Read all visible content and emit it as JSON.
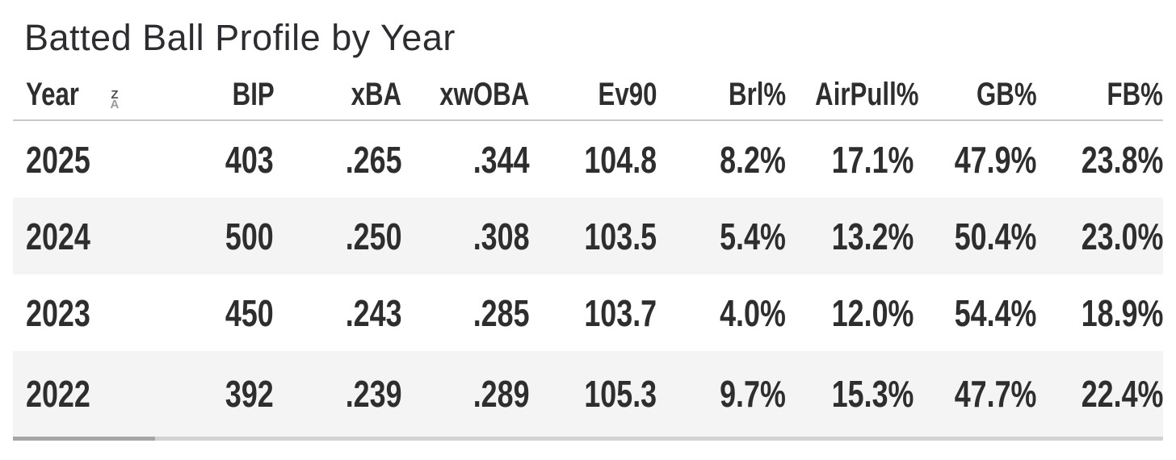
{
  "title": "Batted Ball Profile by Year",
  "table": {
    "sort_icon": {
      "top": "Z",
      "bottom": "A"
    },
    "columns": [
      {
        "label": "Year",
        "sorted": "desc"
      },
      {
        "label": "BIP"
      },
      {
        "label": "xBA"
      },
      {
        "label": "xwOBA"
      },
      {
        "label": "Ev90"
      },
      {
        "label": "Brl%"
      },
      {
        "label": "AirPull%"
      },
      {
        "label": "GB%"
      },
      {
        "label": "FB%"
      }
    ],
    "rows": [
      {
        "cells": [
          "2025",
          "403",
          ".265",
          ".344",
          "104.8",
          "8.2%",
          "17.1%",
          "47.9%",
          "23.8%"
        ]
      },
      {
        "cells": [
          "2024",
          "500",
          ".250",
          ".308",
          "103.5",
          "5.4%",
          "13.2%",
          "50.4%",
          "23.0%"
        ]
      },
      {
        "cells": [
          "2023",
          "450",
          ".243",
          ".285",
          "103.7",
          "4.0%",
          "12.0%",
          "54.4%",
          "18.9%"
        ]
      },
      {
        "cells": [
          "2022",
          "392",
          ".239",
          ".289",
          "105.3",
          "9.7%",
          "15.3%",
          "47.7%",
          "22.4%"
        ]
      }
    ]
  },
  "chart_data": {
    "type": "table",
    "title": "Batted Ball Profile by Year",
    "columns": [
      "Year",
      "BIP",
      "xBA",
      "xwOBA",
      "Ev90",
      "Brl%",
      "AirPull%",
      "GB%",
      "FB%"
    ],
    "rows": [
      [
        "2025",
        403,
        0.265,
        0.344,
        104.8,
        "8.2%",
        "17.1%",
        "47.9%",
        "23.8%"
      ],
      [
        "2024",
        500,
        0.25,
        0.308,
        103.5,
        "5.4%",
        "13.2%",
        "50.4%",
        "23.0%"
      ],
      [
        "2023",
        450,
        0.243,
        0.285,
        103.7,
        "4.0%",
        "12.0%",
        "54.4%",
        "18.9%"
      ],
      [
        "2022",
        392,
        0.239,
        0.289,
        105.3,
        "9.7%",
        "15.3%",
        "47.7%",
        "22.4%"
      ]
    ],
    "sort": {
      "column": "Year",
      "direction": "desc"
    }
  },
  "colors": {
    "row_stripe": "#f4f4f4",
    "text": "#2e2e2e",
    "header_border": "#c9c9c9",
    "scrollbar_track": "#d2d2d2",
    "scrollbar_thumb": "#a6a6a6"
  }
}
